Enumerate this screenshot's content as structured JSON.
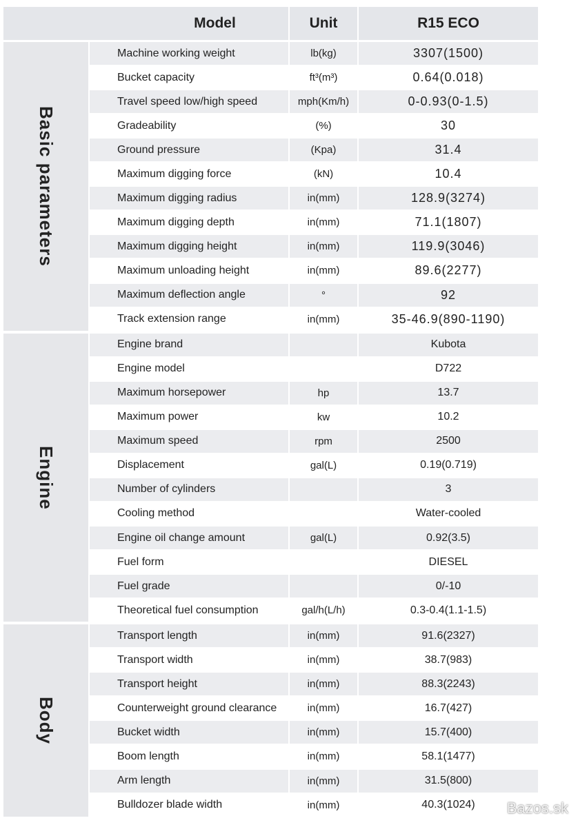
{
  "header": {
    "model": "Model",
    "unit": "Unit",
    "product": "R15 ECO"
  },
  "groups": [
    {
      "label": "Basic parameters",
      "rows": [
        [
          "Machine working weight",
          "lb(kg)",
          "3307(1500)"
        ],
        [
          "Bucket capacity",
          "ft³(m³)",
          "0.64(0.018)"
        ],
        [
          "Travel speed low/high speed",
          "mph(Km/h)",
          "0-0.93(0-1.5)"
        ],
        [
          "Gradeability",
          "(%)",
          "30"
        ],
        [
          "Ground pressure",
          "(Kpa)",
          "31.4"
        ],
        [
          "Maximum digging force",
          "(kN)",
          "10.4"
        ],
        [
          "Maximum digging radius",
          "in(mm)",
          "128.9(3274)"
        ],
        [
          "Maximum digging depth",
          "in(mm)",
          "71.1(1807)"
        ],
        [
          "Maximum digging height",
          "in(mm)",
          "119.9(3046)"
        ],
        [
          "Maximum unloading height",
          "in(mm)",
          "89.6(2277)"
        ],
        [
          "Maximum deflection angle",
          "°",
          "92"
        ],
        [
          "Track extension range",
          "in(mm)",
          "35-46.9(890-1190)"
        ]
      ]
    },
    {
      "label": "Engine",
      "rows": [
        [
          "Engine brand",
          null,
          "Kubota"
        ],
        [
          "Engine model",
          null,
          "D722"
        ],
        [
          "Maximum horsepower",
          "hp",
          "13.7"
        ],
        [
          "Maximum power",
          "kw",
          "10.2"
        ],
        [
          "Maximum speed",
          "rpm",
          "2500"
        ],
        [
          "Displacement",
          "gal(L)",
          "0.19(0.719)"
        ],
        [
          "Number of cylinders",
          null,
          "3"
        ],
        [
          "Cooling method",
          null,
          "Water-cooled"
        ],
        [
          "Engine oil change amount",
          "gal(L)",
          "0.92(3.5)"
        ],
        [
          "Fuel form",
          null,
          "DIESEL"
        ],
        [
          "Fuel grade",
          null,
          "0/-10"
        ],
        [
          "Theoretical fuel consumption",
          "gal/h(L/h)",
          "0.3-0.4(1.1-1.5)"
        ]
      ]
    },
    {
      "label": "Body",
      "rows": [
        [
          "Transport length",
          "in(mm)",
          "91.6(2327)"
        ],
        [
          "Transport width",
          "in(mm)",
          "38.7(983)"
        ],
        [
          "Transport height",
          "in(mm)",
          "88.3(2243)"
        ],
        [
          "Counterweight ground clearance",
          "in(mm)",
          "16.7(427)"
        ],
        [
          "Bucket width",
          "in(mm)",
          "15.7(400)"
        ],
        [
          "Boom length",
          "in(mm)",
          "58.1(1477)"
        ],
        [
          "Arm length",
          "in(mm)",
          "31.5(800)"
        ],
        [
          "Bulldozer blade width",
          "in(mm)",
          "40.3(1024)"
        ]
      ]
    }
  ],
  "watermark": "Bazos.sk"
}
